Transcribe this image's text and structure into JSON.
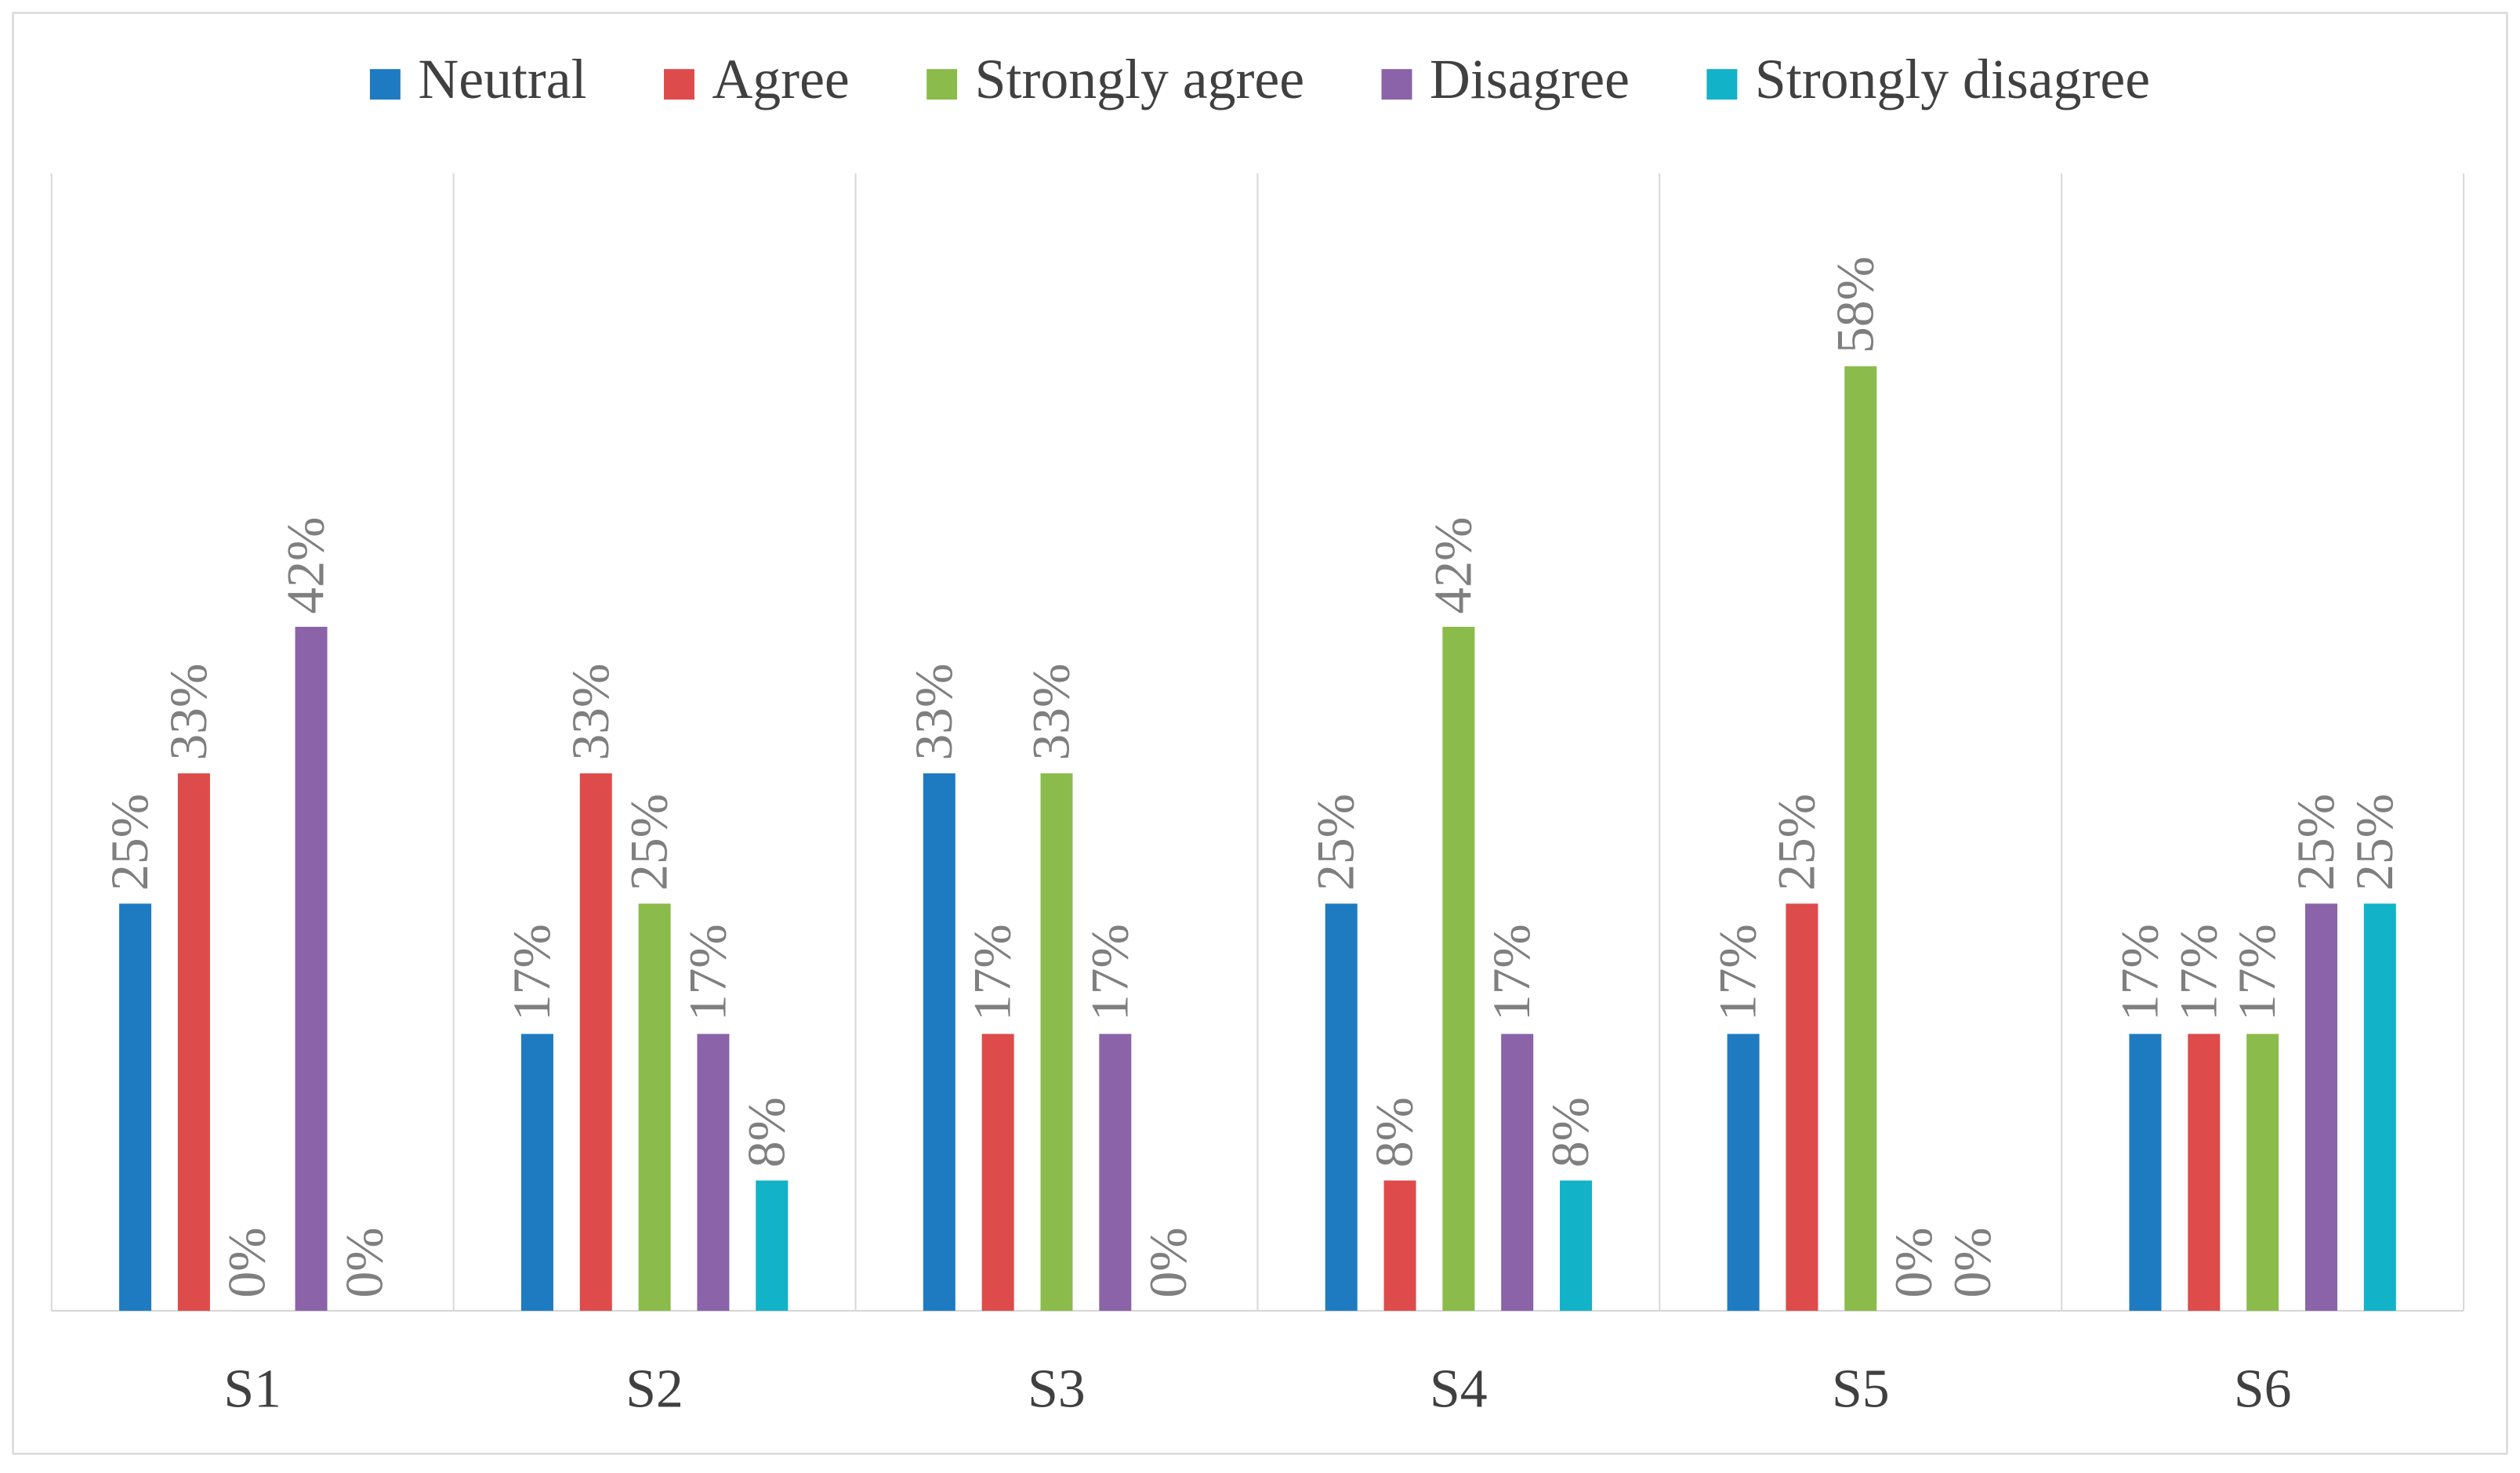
{
  "chart_data": {
    "type": "bar",
    "categories": [
      "S1",
      "S2",
      "S3",
      "S4",
      "S5",
      "S6"
    ],
    "series": [
      {
        "name": "Neutral",
        "color": "#1f7bc1",
        "values": [
          25,
          17,
          33,
          25,
          17,
          17
        ],
        "value_labels": [
          "25%",
          "17%",
          "33%",
          "25%",
          "17%",
          "17%"
        ]
      },
      {
        "name": "Agree",
        "color": "#de4b4b",
        "values": [
          33,
          33,
          17,
          8,
          25,
          17
        ],
        "value_labels": [
          "33%",
          "33%",
          "17%",
          "8%",
          "25%",
          "17%"
        ]
      },
      {
        "name": "Strongly agree",
        "color": "#8bbb4b",
        "values": [
          0,
          25,
          33,
          42,
          58,
          17
        ],
        "value_labels": [
          "0%",
          "25%",
          "33%",
          "42%",
          "58%",
          "17%"
        ]
      },
      {
        "name": "Disagree",
        "color": "#8a63a8",
        "values": [
          42,
          17,
          17,
          17,
          0,
          25
        ],
        "value_labels": [
          "42%",
          "17%",
          "17%",
          "17%",
          "0%",
          "25%"
        ]
      },
      {
        "name": "Strongly disagree",
        "color": "#12b2c8",
        "values": [
          0,
          8,
          0,
          8,
          0,
          25
        ],
        "value_labels": [
          "0%",
          "8%",
          "0%",
          "8%",
          "0%",
          "25%"
        ]
      }
    ],
    "legend": "top",
    "grid": true
  }
}
